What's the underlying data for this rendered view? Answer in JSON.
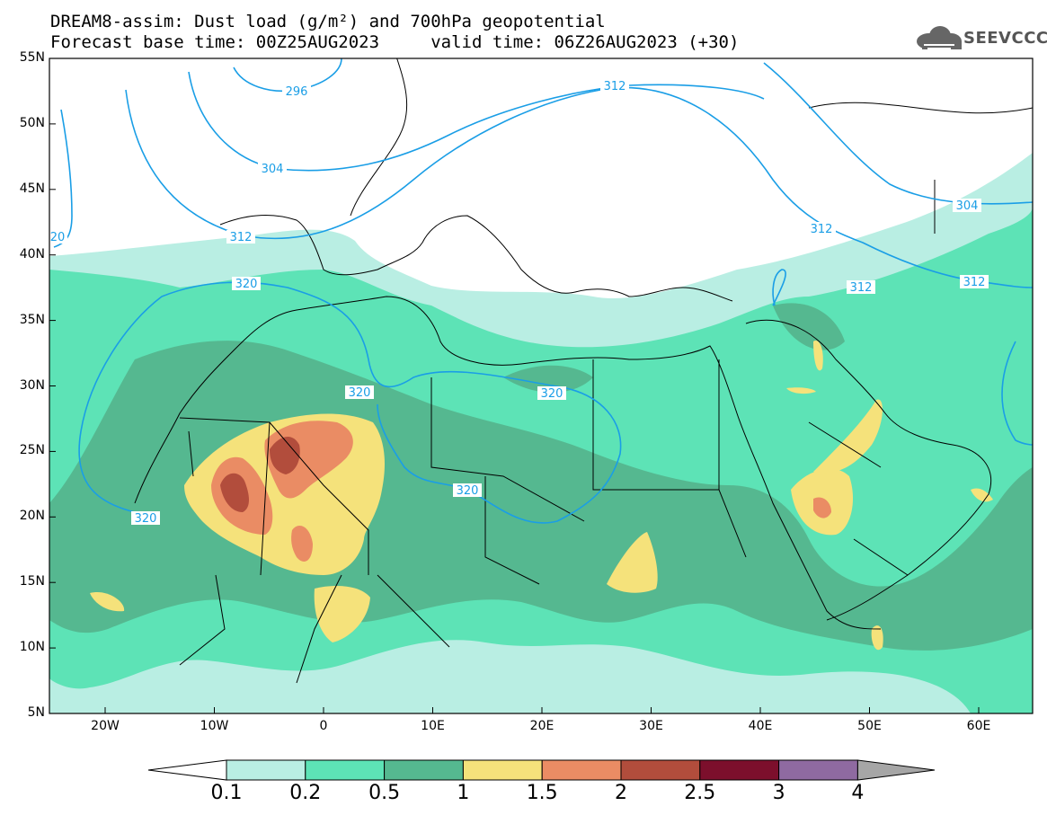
{
  "header": {
    "title_line1": "DREAM8-assim: Dust load (g/m²) and 700hPa geopotential",
    "title_line2": "Forecast base time: 00Z25AUG2023     valid time: 06Z26AUG2023 (+30)",
    "logo_text": "SEEVCCC"
  },
  "map": {
    "lat_labels": [
      "55N",
      "50N",
      "45N",
      "40N",
      "35N",
      "30N",
      "25N",
      "20N",
      "15N",
      "10N",
      "5N"
    ],
    "lon_labels": [
      "20W",
      "10W",
      "0",
      "10E",
      "20E",
      "30E",
      "40E",
      "50E",
      "60E"
    ],
    "contour_labels": [
      "296",
      "304",
      "312",
      "312",
      "312",
      "312",
      "312",
      "320",
      "320",
      "320",
      "320",
      "320",
      "304",
      "20"
    ]
  },
  "legend": {
    "labels": [
      "0.1",
      "0.2",
      "0.5",
      "1",
      "1.5",
      "2",
      "2.5",
      "3",
      "4"
    ],
    "colors": [
      "#b9eee3",
      "#5de3b6",
      "#55b890",
      "#f5e27b",
      "#ea8c64",
      "#b24d3c",
      "#7c0f2c",
      "#8f6aa1",
      "#a6a6a6"
    ],
    "low_cap_color": "#ffffff",
    "high_cap_color": "#a6a6a6"
  },
  "colors": {
    "contour": "#1a9ee6",
    "border": "#000000"
  }
}
